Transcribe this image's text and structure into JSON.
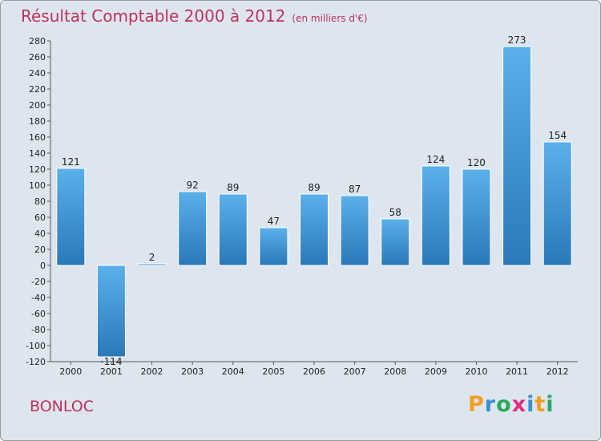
{
  "header": {
    "title": "Résultat Comptable 2000 à 2012",
    "subtitle": "(en milliers d'€)"
  },
  "commune": "BONLOC",
  "logo": {
    "letters": [
      "P",
      "r",
      "o",
      "x",
      "i",
      "t",
      "i"
    ],
    "colors": [
      "#f0a020",
      "#3a8fd0",
      "#2aa85a",
      "#e03080",
      "#3a8fd0",
      "#f0a020",
      "#2aa85a"
    ]
  },
  "chart_data": {
    "type": "bar",
    "title": "Résultat Comptable 2000 à 2012",
    "subtitle": "(en milliers d'€)",
    "categories": [
      "2000",
      "2001",
      "2002",
      "2003",
      "2004",
      "2005",
      "2006",
      "2007",
      "2008",
      "2009",
      "2010",
      "2011",
      "2012"
    ],
    "values": [
      121,
      -114,
      2,
      92,
      89,
      47,
      89,
      87,
      58,
      124,
      120,
      273,
      154
    ],
    "value_labels": [
      "121",
      "-114",
      "2",
      "92",
      "89",
      "47",
      "89",
      "87",
      "58",
      "124",
      "120",
      "273",
      "154"
    ],
    "ylim": [
      -120,
      280
    ],
    "ytick_step": 20,
    "yticks": [
      "280",
      "260",
      "240",
      "220",
      "200",
      "180",
      "160",
      "140",
      "120",
      "100",
      "80",
      "60",
      "40",
      "20",
      "0",
      "-20",
      "-40",
      "-60",
      "-80",
      "-100",
      "-120"
    ],
    "grid": false,
    "bar_color": "#3a8fd0",
    "bar_color_light": "#5bb0ea",
    "bar_color_dark": "#2a78b8",
    "text_color": "#222222"
  }
}
